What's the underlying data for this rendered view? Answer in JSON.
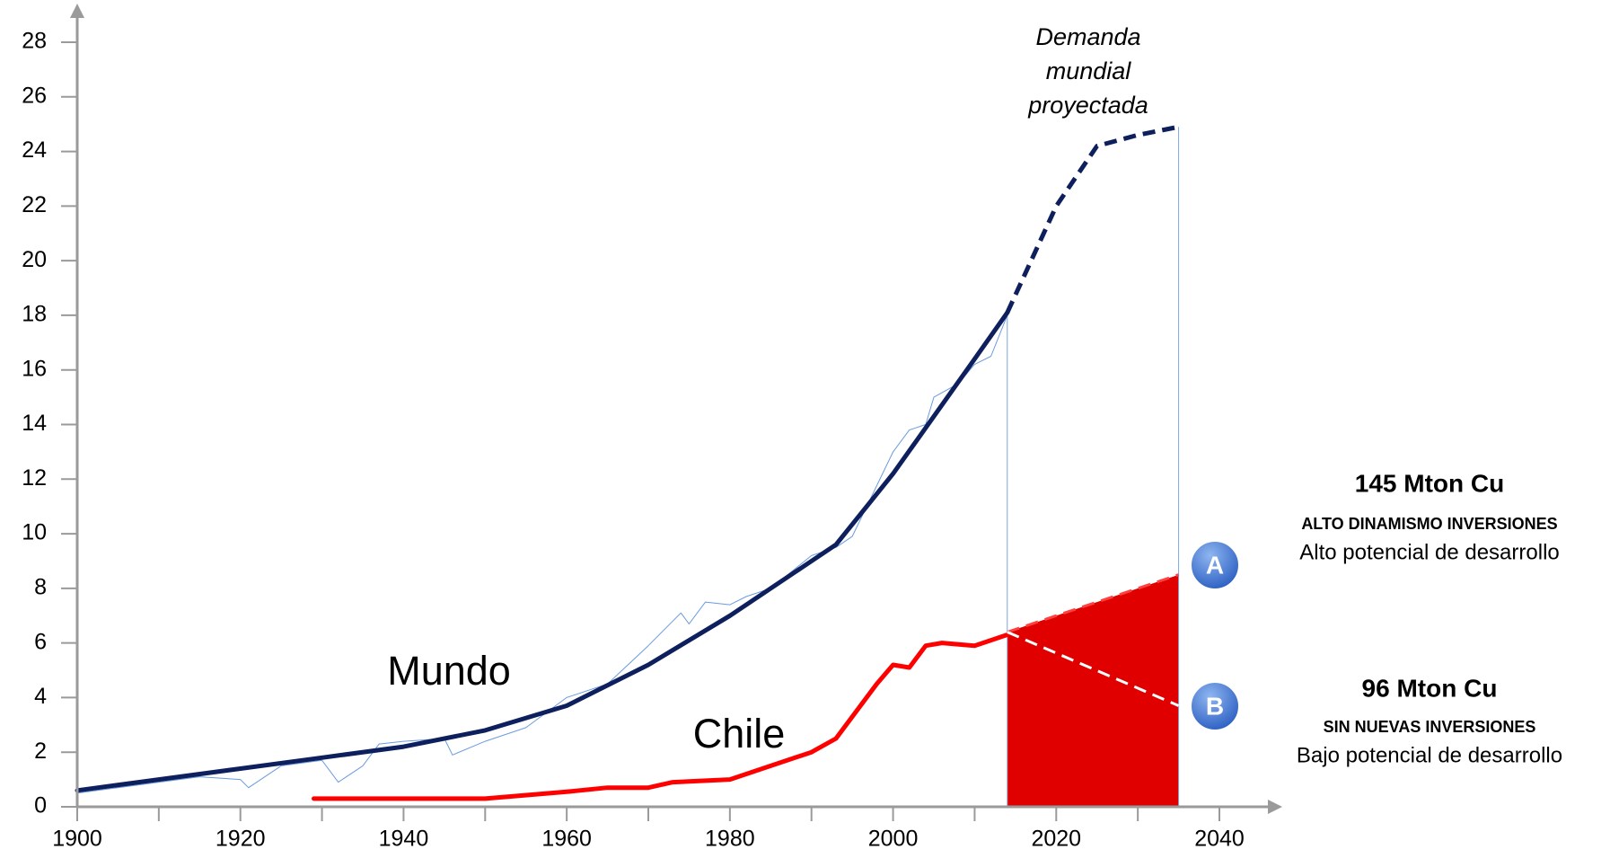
{
  "chart_data": {
    "type": "line",
    "xlim": [
      1900,
      2040
    ],
    "ylim": [
      0,
      28
    ],
    "xticks": [
      1900,
      1920,
      1940,
      1960,
      1980,
      2000,
      2020,
      2040
    ],
    "yticks": [
      0,
      2,
      4,
      6,
      8,
      10,
      12,
      14,
      16,
      18,
      20,
      22,
      24,
      26,
      28
    ],
    "grid": false,
    "series": [
      {
        "name": "Mundo",
        "color": "#0d1f5c",
        "linewidth": 5,
        "style": "solid",
        "x": [
          1900,
          1910,
          1920,
          1930,
          1940,
          1950,
          1960,
          1970,
          1980,
          1993,
          2000,
          2010,
          2014
        ],
        "values": [
          0.6,
          1.0,
          1.4,
          1.8,
          2.2,
          2.8,
          3.7,
          5.2,
          7.0,
          9.6,
          12.2,
          16.4,
          18.1
        ]
      },
      {
        "name": "Demanda mundial proyectada",
        "color": "#0d1f5c",
        "linewidth": 5,
        "style": "dashed",
        "x": [
          2014,
          2020,
          2025,
          2030,
          2035
        ],
        "values": [
          18.1,
          22.0,
          24.2,
          24.6,
          24.9
        ]
      },
      {
        "name": "Chile",
        "color": "#ff0000",
        "linewidth": 5,
        "style": "solid",
        "x": [
          1929,
          1940,
          1950,
          1960,
          1965,
          1970,
          1973,
          1980,
          1985,
          1990,
          1993,
          1998,
          2000,
          2002,
          2004,
          2006,
          2010,
          2014
        ],
        "values": [
          0.3,
          0.3,
          0.3,
          0.55,
          0.7,
          0.7,
          0.9,
          1.0,
          1.5,
          2.0,
          2.5,
          4.5,
          5.2,
          5.1,
          5.9,
          6.0,
          5.9,
          6.3
        ]
      },
      {
        "color": "#6b9be0",
        "linewidth": 1,
        "style": "solid",
        "x": [
          1900,
          1905,
          1910,
          1915,
          1920,
          1921,
          1925,
          1930,
          1932,
          1935,
          1937,
          1940,
          1945,
          1946,
          1950,
          1955,
          1960,
          1965,
          1970,
          1974,
          1975,
          1977,
          1980,
          1982,
          1985,
          1990,
          1993,
          1995,
          2000,
          2002,
          2004,
          2005,
          2008,
          2010,
          2012,
          2014
        ],
        "values": [
          0.5,
          0.7,
          0.9,
          1.1,
          1.0,
          0.7,
          1.5,
          1.7,
          0.9,
          1.5,
          2.3,
          2.4,
          2.5,
          1.9,
          2.4,
          2.9,
          4.0,
          4.5,
          5.9,
          7.1,
          6.7,
          7.5,
          7.4,
          7.7,
          8.0,
          9.2,
          9.5,
          9.9,
          13.0,
          13.8,
          14.0,
          15.0,
          15.5,
          16.2,
          16.5,
          18.0
        ]
      },
      {
        "name": "A",
        "color": "#ff4040",
        "linewidth": 3,
        "style": "dashed",
        "fill": "#e00000",
        "x": [
          2014,
          2035
        ],
        "values": [
          6.4,
          8.5
        ]
      },
      {
        "name": "B",
        "color": "#ffffff",
        "linewidth": 3,
        "style": "dashed",
        "x": [
          2014,
          2035
        ],
        "values": [
          6.4,
          3.7
        ]
      }
    ],
    "annotations": [
      "145 Mton Cu",
      "ALTO DINAMISMO INVERSIONES",
      "Alto potencial de desarrollo",
      "96 Mton Cu",
      "SIN NUEVAS INVERSIONES",
      "Bajo potencial de desarrollo"
    ]
  }
}
